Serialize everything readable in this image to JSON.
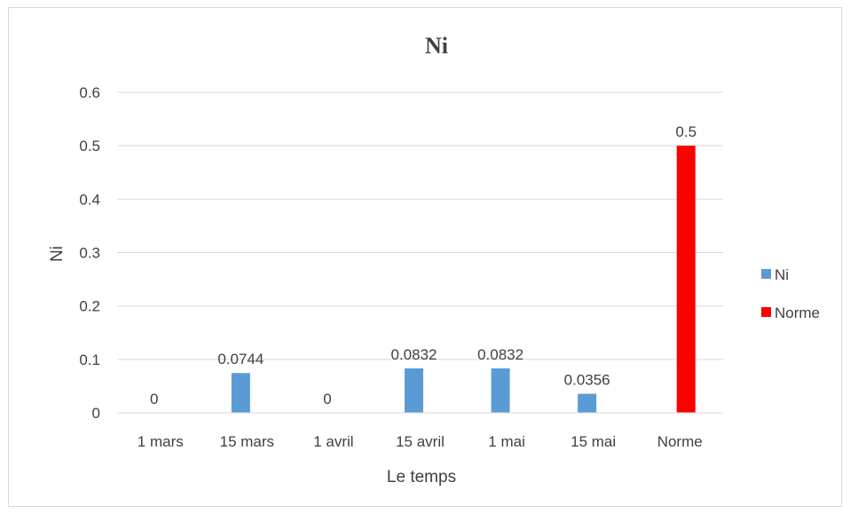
{
  "chart_data": {
    "type": "bar",
    "title": "Ni",
    "xlabel": "Le temps",
    "ylabel": "Ni",
    "categories": [
      "1 mars",
      "15 mars",
      "1 avril",
      "15 avril",
      "1 mai",
      "15 mai",
      "Norme"
    ],
    "ylim": [
      0,
      0.6
    ],
    "yticks": [
      "0",
      "0.1",
      "0.2",
      "0.3",
      "0.4",
      "0.5",
      "0.6"
    ],
    "grid": true,
    "legend_position": "right",
    "series": [
      {
        "name": "Ni",
        "color": "#5b9bd5",
        "values": [
          0,
          0.0744,
          0,
          0.0832,
          0.0832,
          0.0356,
          null
        ],
        "labels": [
          "0",
          "0.0744",
          "0",
          "0.0832",
          "0.0832",
          "0.0356",
          ""
        ]
      },
      {
        "name": "Norme",
        "color": "#ff0000",
        "values": [
          null,
          null,
          null,
          null,
          null,
          null,
          0.5
        ],
        "labels": [
          "",
          "",
          "",
          "",
          "",
          "",
          "0.5"
        ]
      }
    ]
  }
}
